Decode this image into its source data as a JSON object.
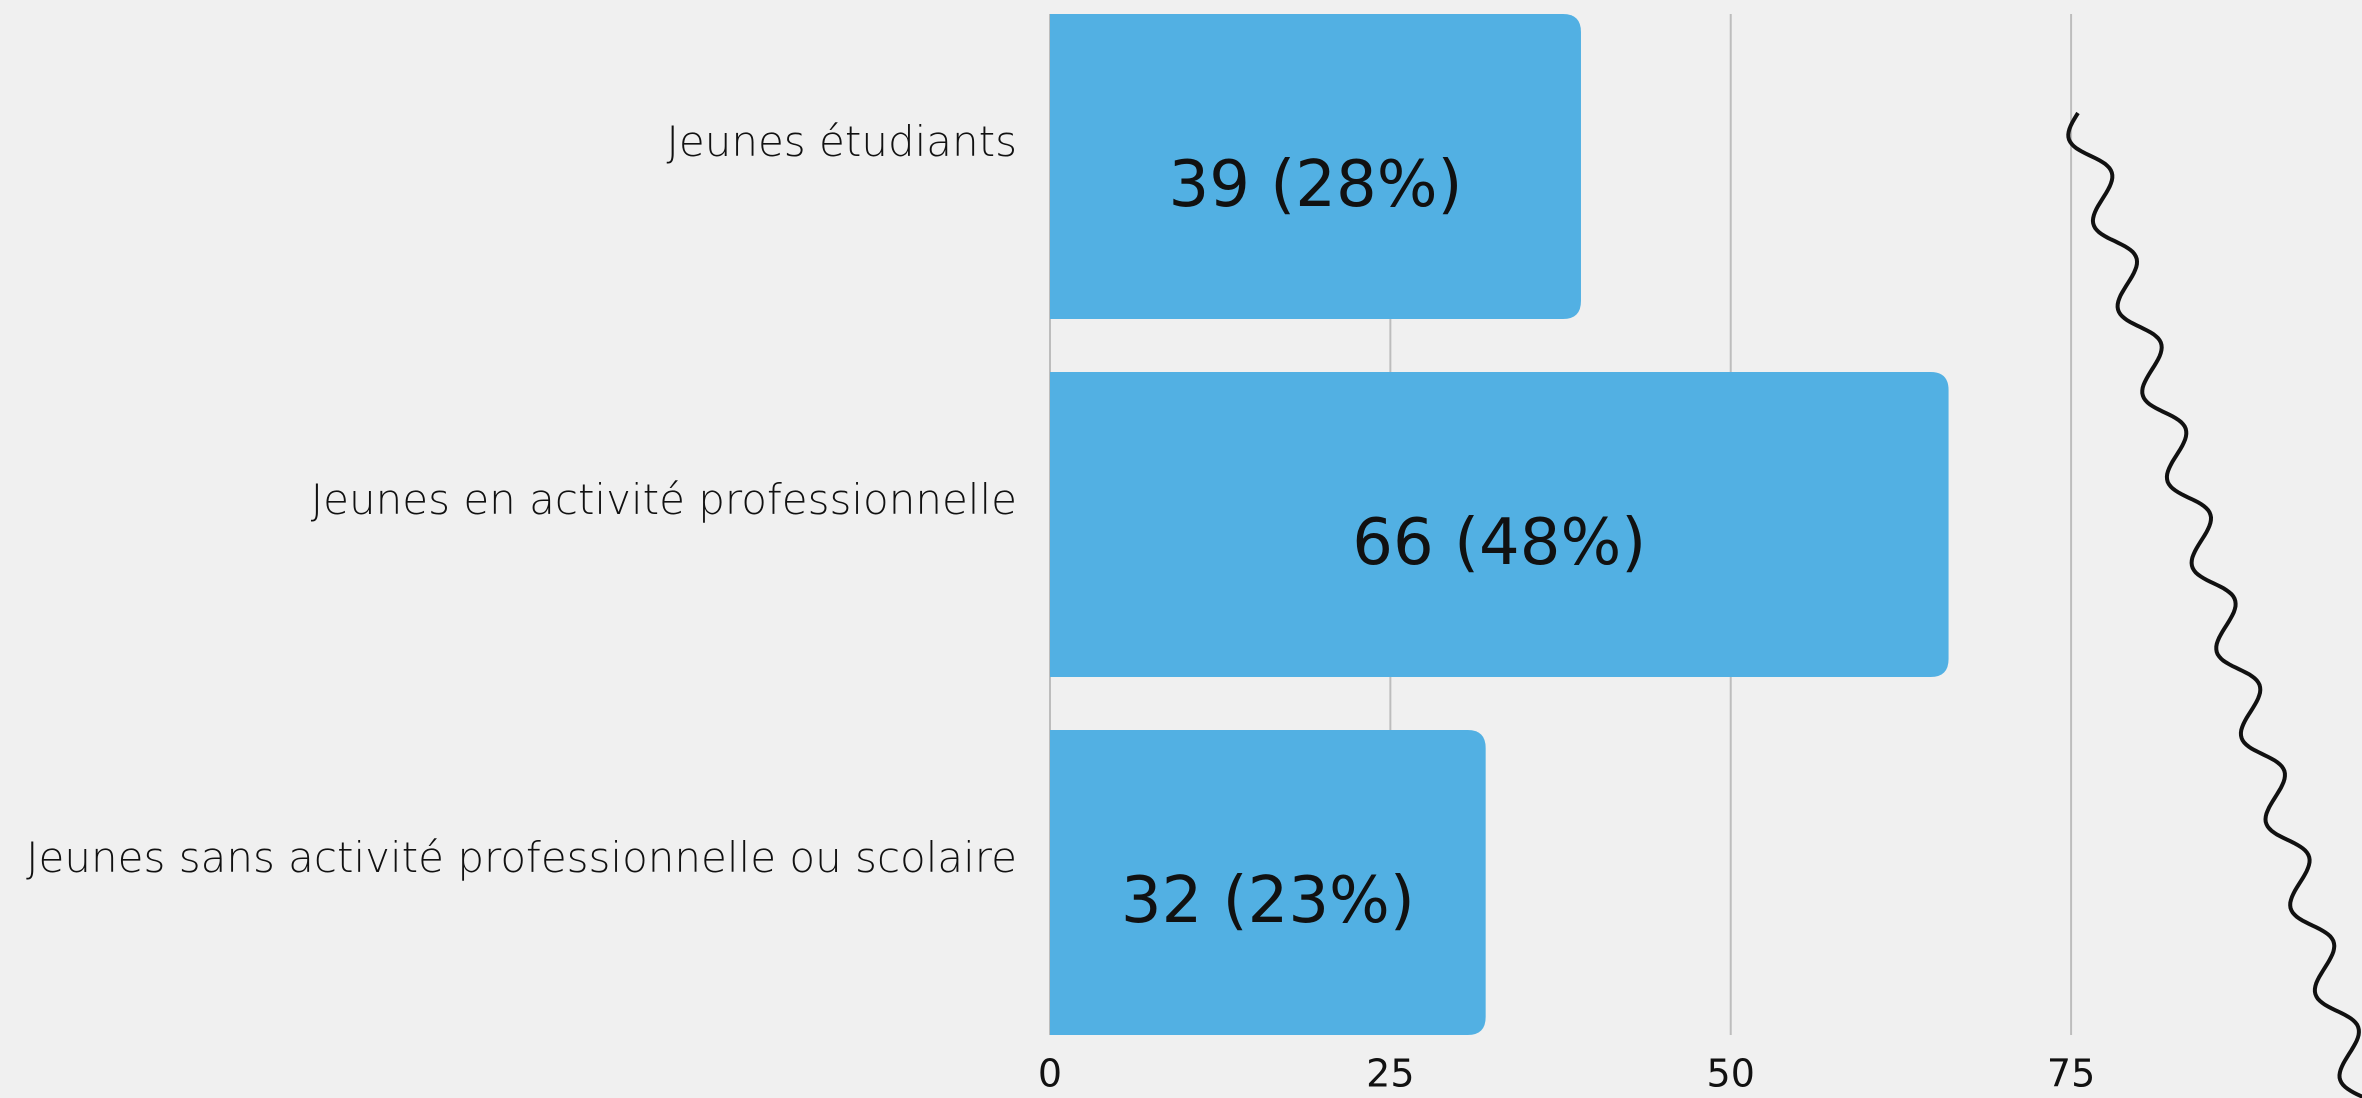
{
  "chart_data": {
    "type": "bar",
    "orientation": "horizontal",
    "categories": [
      "Jeunes étudiants",
      "Jeunes en activité professionnelle",
      "Jeunes sans activité professionnelle ou scolaire"
    ],
    "values": [
      39,
      66,
      32
    ],
    "value_labels": [
      "39 (28%)",
      "66 (48%)",
      "32 (23%)"
    ],
    "color": "#52b0e3",
    "xlim": [
      0,
      96
    ],
    "xticks": [
      0,
      25,
      50,
      75
    ],
    "grid": true
  }
}
